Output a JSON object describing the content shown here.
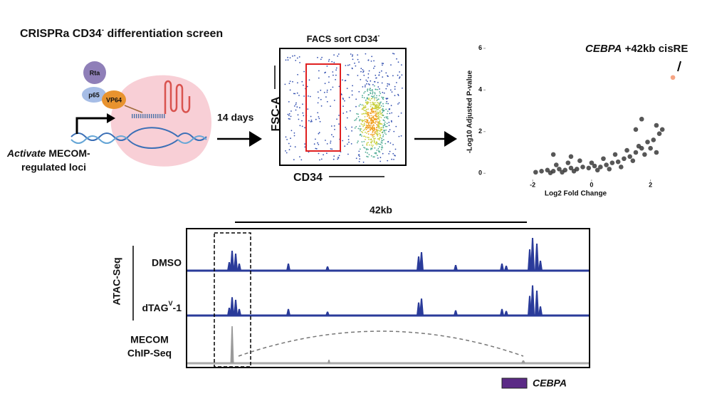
{
  "title": {
    "main": "CRISPRa CD34",
    "sup": "-",
    "rest": " differentiation screen"
  },
  "cartoon": {
    "proteins": [
      "Rta",
      "p65",
      "VP64"
    ],
    "caption_italic": "Activate",
    "caption_1": " MECOM-",
    "caption_2": "regulated loci"
  },
  "step1": "14 days",
  "facs": {
    "title": "FACS sort CD34",
    "title_sup": "-",
    "y_label": "FSC-A",
    "x_label": "CD34"
  },
  "chart_data": {
    "type": "scatter",
    "xlabel": "Log2 Fold Change",
    "ylabel": "-Log10 Adjusted P-value",
    "annotation_italic": "CEBPA",
    "annotation": " +42kb cisRE",
    "xlim": [
      -3.6,
      3.0
    ],
    "ylim": [
      -0.3,
      6.2
    ],
    "xticks": [
      -2,
      0,
      2
    ],
    "yticks": [
      0,
      2,
      4,
      6
    ],
    "series": [
      {
        "color": "#3a3a3a",
        "x": [
          -1.9,
          -1.7,
          -1.5,
          -1.3,
          -1.1,
          -0.9,
          -0.7,
          -0.5,
          -0.3,
          -0.1,
          0.1,
          0.3,
          0.5,
          0.7,
          0.9,
          1.1,
          1.3,
          1.5,
          1.7,
          1.9,
          2.1,
          2.3,
          -1.2,
          -0.8,
          -0.4,
          0,
          0.4,
          0.8,
          1.2,
          1.6,
          2.0,
          1.4,
          1.8,
          2.2,
          -0.6,
          0.2,
          0.6,
          1.0,
          -1.0,
          -1.4,
          1.5,
          1.7,
          2.2,
          2.4,
          -1.3,
          -0.7
        ],
        "values": [
          0.05,
          0.1,
          0.15,
          0.1,
          0.2,
          0.15,
          0.25,
          0.2,
          0.3,
          0.25,
          0.35,
          0.3,
          0.4,
          0.5,
          0.55,
          0.7,
          0.8,
          1.0,
          1.2,
          1.5,
          1.6,
          1.9,
          0.4,
          0.5,
          0.6,
          0.5,
          0.7,
          0.9,
          1.1,
          1.3,
          1.2,
          0.6,
          0.9,
          1.0,
          0.1,
          0.15,
          0.2,
          0.3,
          0.05,
          0.02,
          2.1,
          2.6,
          2.3,
          2.1,
          0.9,
          0.8
        ]
      },
      {
        "color": "#f4956e",
        "x": [
          2.76
        ],
        "values": [
          4.6
        ]
      }
    ]
  },
  "tracks": {
    "span": "42kb",
    "group": "ATAC-Seq",
    "rows": [
      {
        "label": "DMSO"
      },
      {
        "label": "dTAG",
        "sup": "V",
        "label_rest": "-1"
      }
    ],
    "chip": [
      "MECOM",
      "ChIP-Seq"
    ],
    "gene": "CEBPA"
  }
}
